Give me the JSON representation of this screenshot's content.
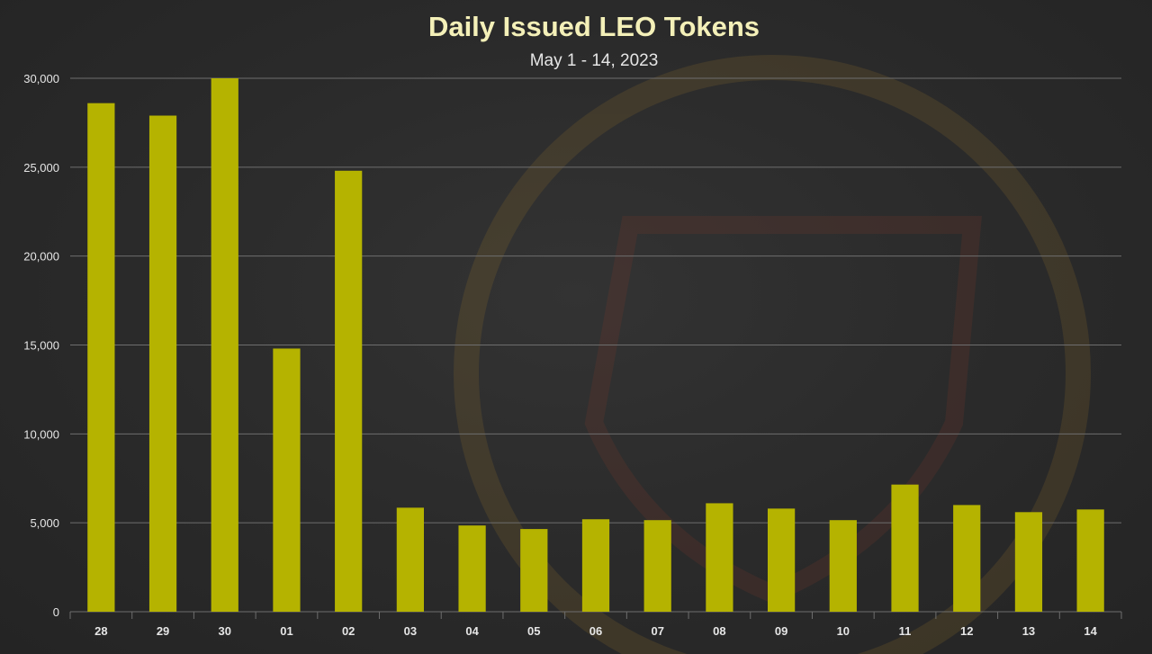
{
  "chart_data": {
    "type": "bar",
    "title": "Daily Issued LEO Tokens",
    "subtitle": "May 1 - 14, 2023",
    "xlabel": "",
    "ylabel": "",
    "categories": [
      "28",
      "29",
      "30",
      "01",
      "02",
      "03",
      "04",
      "05",
      "06",
      "07",
      "08",
      "09",
      "10",
      "11",
      "12",
      "13",
      "14"
    ],
    "values": [
      28600,
      27900,
      30000,
      14800,
      24800,
      5850,
      4850,
      4650,
      5200,
      5150,
      6100,
      5800,
      5150,
      7150,
      6000,
      5600,
      5750
    ],
    "ylim": [
      0,
      30000
    ],
    "yticks": [
      0,
      5000,
      10000,
      15000,
      20000,
      25000,
      30000
    ],
    "ytick_labels": [
      "0",
      "5,000",
      "10,000",
      "15,000",
      "20,000",
      "25,000",
      "30,000"
    ],
    "grid": true,
    "legend": "none",
    "bar_color": "#b5b300",
    "background_color": "#2b2b2b"
  }
}
